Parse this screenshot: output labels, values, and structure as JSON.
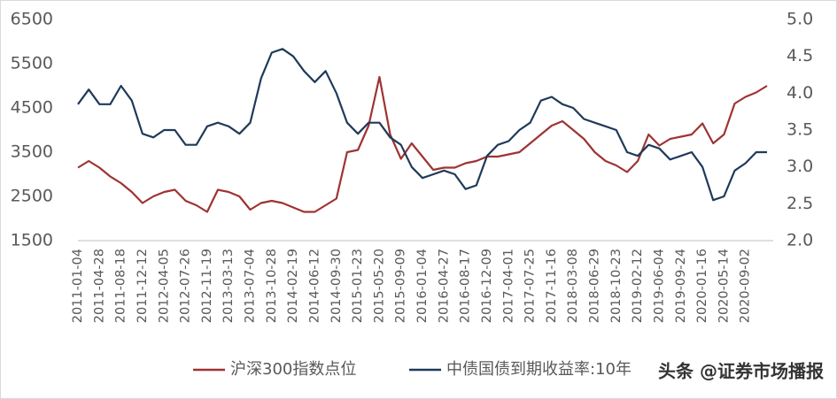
{
  "chart_data": {
    "type": "line",
    "categories": [
      "2011-01-04",
      null,
      "2011-04-28",
      null,
      "2011-08-18",
      null,
      "2011-12-12",
      null,
      "2012-04-05",
      null,
      "2012-07-26",
      null,
      "2012-11-19",
      null,
      "2013-03-13",
      null,
      "2013-07-04",
      null,
      "2013-10-28",
      null,
      "2014-02-19",
      null,
      "2014-06-12",
      null,
      "2014-09-30",
      null,
      "2015-01-23",
      null,
      "2015-05-20",
      null,
      "2015-09-09",
      null,
      "2016-01-04",
      null,
      "2016-04-27",
      null,
      "2016-08-17",
      null,
      "2016-12-09",
      null,
      "2017-04-01",
      null,
      "2017-07-25",
      null,
      "2017-11-16",
      null,
      "2018-03-08",
      null,
      "2018-06-29",
      null,
      "2018-10-23",
      null,
      "2019-02-12",
      null,
      "2019-06-04",
      null,
      "2019-09-24",
      null,
      "2020-01-16",
      null,
      "2020-05-14",
      null,
      "2020-09-02",
      null,
      null
    ],
    "series": [
      {
        "name": "沪深300指数点位",
        "color": "#9e3332",
        "values": [
          3150,
          3300,
          3150,
          2950,
          2800,
          2600,
          2350,
          2500,
          2600,
          2650,
          2400,
          2300,
          2150,
          2650,
          2600,
          2500,
          2200,
          2350,
          2400,
          2350,
          2250,
          2150,
          2150,
          2300,
          2450,
          3500,
          3550,
          4100,
          5200,
          3900,
          3350,
          3700,
          3400,
          3100,
          3150,
          3150,
          3250,
          3300,
          3400,
          3400,
          3450,
          3500,
          3700,
          3900,
          4100,
          4200,
          4000,
          3800,
          3500,
          3300,
          3200,
          3050,
          3300,
          3900,
          3650,
          3800,
          3850,
          3900,
          4150,
          3700,
          3900,
          4600,
          4750,
          4850,
          5000
        ]
      },
      {
        "name": "中债国债到期收益率:10年",
        "color": "#1f3a5a",
        "axis": "y2",
        "values": [
          3.85,
          4.05,
          3.85,
          3.85,
          4.1,
          3.9,
          3.45,
          3.4,
          3.5,
          3.5,
          3.3,
          3.3,
          3.55,
          3.6,
          3.55,
          3.45,
          3.6,
          4.2,
          4.55,
          4.6,
          4.5,
          4.3,
          4.15,
          4.3,
          4.0,
          3.6,
          3.45,
          3.6,
          3.6,
          3.4,
          3.3,
          3.0,
          2.85,
          2.9,
          2.95,
          2.9,
          2.7,
          2.75,
          3.15,
          3.3,
          3.35,
          3.5,
          3.6,
          3.9,
          3.95,
          3.85,
          3.8,
          3.65,
          3.6,
          3.55,
          3.5,
          3.2,
          3.15,
          3.3,
          3.25,
          3.1,
          3.15,
          3.2,
          3.0,
          2.55,
          2.6,
          2.95,
          3.05,
          3.2,
          3.2
        ]
      }
    ],
    "ylim": [
      1500,
      6500
    ],
    "yticks": [
      6500,
      5500,
      4500,
      3500,
      2500,
      1500
    ],
    "y2lim": [
      2,
      5
    ],
    "y2ticks": [
      {
        "value": 5,
        "label": "5.0"
      },
      4.5,
      {
        "value": 4,
        "label": "4.0"
      },
      3.5,
      {
        "value": 3,
        "label": "3.0"
      },
      2.5,
      {
        "value": 2,
        "label": "2.0"
      }
    ],
    "legend": "bottom",
    "watermark": "头条 @证券市场播报"
  }
}
